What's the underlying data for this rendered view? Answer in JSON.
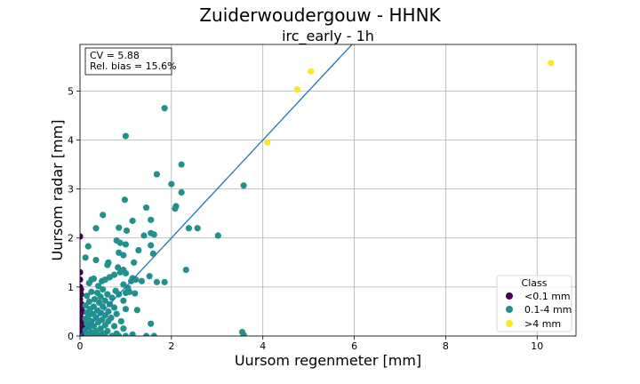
{
  "chart_data": {
    "type": "scatter",
    "suptitle": "Zuiderwoudergouw - HHNK",
    "title": "irc_early - 1h",
    "xlabel": "Uursom regenmeter [mm]",
    "ylabel": "Uursom radar [mm]",
    "xlim": [
      0,
      10.85
    ],
    "ylim": [
      0,
      5.95
    ],
    "xticks": [
      0,
      2,
      4,
      6,
      8,
      10
    ],
    "yticks": [
      0,
      1,
      2,
      3,
      4,
      5
    ],
    "grid": true,
    "stats": [
      "CV = 5.88",
      "Rel. bias = 15.6%"
    ],
    "reference_line": {
      "slope": 1,
      "color": "#1f77b4"
    },
    "legend": {
      "title": "Class",
      "placement": "lower-right",
      "entries": [
        {
          "label": "<0.1 mm",
          "color": "#440154"
        },
        {
          "label": "0.1-4 mm",
          "color": "#21918c"
        },
        {
          "label": ">4 mm",
          "color": "#fde725"
        }
      ]
    },
    "series": [
      {
        "name": "<0.1 mm",
        "color": "#440154",
        "points": [
          [
            0,
            2.03
          ],
          [
            0,
            1.3
          ],
          [
            0,
            1.15
          ],
          [
            0,
            1.0
          ],
          [
            0.02,
            0.85
          ],
          [
            0,
            0.75
          ],
          [
            0.03,
            0.65
          ],
          [
            0,
            0.55
          ],
          [
            0.05,
            0.5
          ],
          [
            0,
            0.42
          ],
          [
            0.04,
            0.35
          ],
          [
            0.02,
            0.3
          ],
          [
            0.06,
            0.22
          ],
          [
            0,
            0.18
          ],
          [
            0.03,
            0.12
          ],
          [
            0.07,
            0.08
          ],
          [
            0.01,
            0.05
          ],
          [
            0.05,
            0.02
          ],
          [
            0,
            0
          ],
          [
            0.08,
            0
          ],
          [
            0.04,
            0.6
          ],
          [
            0.02,
            0.95
          ]
        ]
      },
      {
        "name": "0.1-4 mm",
        "color": "#21918c",
        "points": [
          [
            1.85,
            4.65
          ],
          [
            1.0,
            4.08
          ],
          [
            2.22,
            3.5
          ],
          [
            1.68,
            3.3
          ],
          [
            3.58,
            3.07
          ],
          [
            2.0,
            3.1
          ],
          [
            2.22,
            2.93
          ],
          [
            0.98,
            2.78
          ],
          [
            1.45,
            2.62
          ],
          [
            2.1,
            2.65
          ],
          [
            2.08,
            2.6
          ],
          [
            0.5,
            2.47
          ],
          [
            1.15,
            2.35
          ],
          [
            1.55,
            2.37
          ],
          [
            0.85,
            2.21
          ],
          [
            0.35,
            2.2
          ],
          [
            2.38,
            2.2
          ],
          [
            2.57,
            2.2
          ],
          [
            1.02,
            2.15
          ],
          [
            1.55,
            2.1
          ],
          [
            1.62,
            2.07
          ],
          [
            1.4,
            2.05
          ],
          [
            3.02,
            2.05
          ],
          [
            0.8,
            1.95
          ],
          [
            0.88,
            1.9
          ],
          [
            1.0,
            1.87
          ],
          [
            1.55,
            1.85
          ],
          [
            0.18,
            1.83
          ],
          [
            1.28,
            1.75
          ],
          [
            0.85,
            1.7
          ],
          [
            1.6,
            1.68
          ],
          [
            0.95,
            1.65
          ],
          [
            0.12,
            1.6
          ],
          [
            0.35,
            1.55
          ],
          [
            0.62,
            1.5
          ],
          [
            1.18,
            1.5
          ],
          [
            0.6,
            1.45
          ],
          [
            0.83,
            1.4
          ],
          [
            0.95,
            1.35
          ],
          [
            2.32,
            1.35
          ],
          [
            0.88,
            1.3
          ],
          [
            1.0,
            1.28
          ],
          [
            0.75,
            1.25
          ],
          [
            1.52,
            1.22
          ],
          [
            0.65,
            1.2
          ],
          [
            1.15,
            1.18
          ],
          [
            0.3,
            1.17
          ],
          [
            0.25,
            1.15
          ],
          [
            0.55,
            1.15
          ],
          [
            1.22,
            1.15
          ],
          [
            0.48,
            1.12
          ],
          [
            1.12,
            1.12
          ],
          [
            1.35,
            1.12
          ],
          [
            1.68,
            1.1
          ],
          [
            1.85,
            1.1
          ],
          [
            0.2,
            1.08
          ],
          [
            0.95,
            1.05
          ],
          [
            0.4,
            1.02
          ],
          [
            1.05,
            0.98
          ],
          [
            0.5,
            0.95
          ],
          [
            0.78,
            0.92
          ],
          [
            1.08,
            0.9
          ],
          [
            0.25,
            0.9
          ],
          [
            0.38,
            0.88
          ],
          [
            1.0,
            0.88
          ],
          [
            1.2,
            0.87
          ],
          [
            0.6,
            0.85
          ],
          [
            0.85,
            0.85
          ],
          [
            0.15,
            0.82
          ],
          [
            0.45,
            0.8
          ],
          [
            0.7,
            0.78
          ],
          [
            0.32,
            0.75
          ],
          [
            0.55,
            0.72
          ],
          [
            0.95,
            0.72
          ],
          [
            0.2,
            0.7
          ],
          [
            0.42,
            0.68
          ],
          [
            0.65,
            0.65
          ],
          [
            0.12,
            0.62
          ],
          [
            0.3,
            0.6
          ],
          [
            0.5,
            0.6
          ],
          [
            0.75,
            0.58
          ],
          [
            0.22,
            0.55
          ],
          [
            1.0,
            0.55
          ],
          [
            1.25,
            0.53
          ],
          [
            0.38,
            0.52
          ],
          [
            0.62,
            0.5
          ],
          [
            0.15,
            0.48
          ],
          [
            0.45,
            0.47
          ],
          [
            0.28,
            0.45
          ],
          [
            0.8,
            0.45
          ],
          [
            0.55,
            0.42
          ],
          [
            0.18,
            0.4
          ],
          [
            0.35,
            0.38
          ],
          [
            0.68,
            0.37
          ],
          [
            0.12,
            0.35
          ],
          [
            0.48,
            0.33
          ],
          [
            0.25,
            0.3
          ],
          [
            0.62,
            0.3
          ],
          [
            0.9,
            0.3
          ],
          [
            0.4,
            0.28
          ],
          [
            0.15,
            0.25
          ],
          [
            1.55,
            0.25
          ],
          [
            0.55,
            0.22
          ],
          [
            0.3,
            0.2
          ],
          [
            0.75,
            0.2
          ],
          [
            0.2,
            0.18
          ],
          [
            0.45,
            0.15
          ],
          [
            0.95,
            0.15
          ],
          [
            0.12,
            0.12
          ],
          [
            0.35,
            0.1
          ],
          [
            0.6,
            0.1
          ],
          [
            0.25,
            0.07
          ],
          [
            0.5,
            0.05
          ],
          [
            0.8,
            0.05
          ],
          [
            0.15,
            0.03
          ],
          [
            1.15,
            0.03
          ],
          [
            0.4,
            0.02
          ],
          [
            0.7,
            0.0
          ],
          [
            0.3,
            0.0
          ],
          [
            1.0,
            0.0
          ],
          [
            1.45,
            0.0
          ],
          [
            1.62,
            0.0
          ],
          [
            3.55,
            0.08
          ],
          [
            3.58,
            0.02
          ],
          [
            0.55,
            0.0
          ],
          [
            0.85,
            0.0
          ]
        ]
      },
      {
        "name": ">4 mm",
        "color": "#fde725",
        "points": [
          [
            10.3,
            5.57
          ],
          [
            5.05,
            5.4
          ],
          [
            4.75,
            5.03
          ],
          [
            4.1,
            3.95
          ]
        ]
      }
    ]
  }
}
